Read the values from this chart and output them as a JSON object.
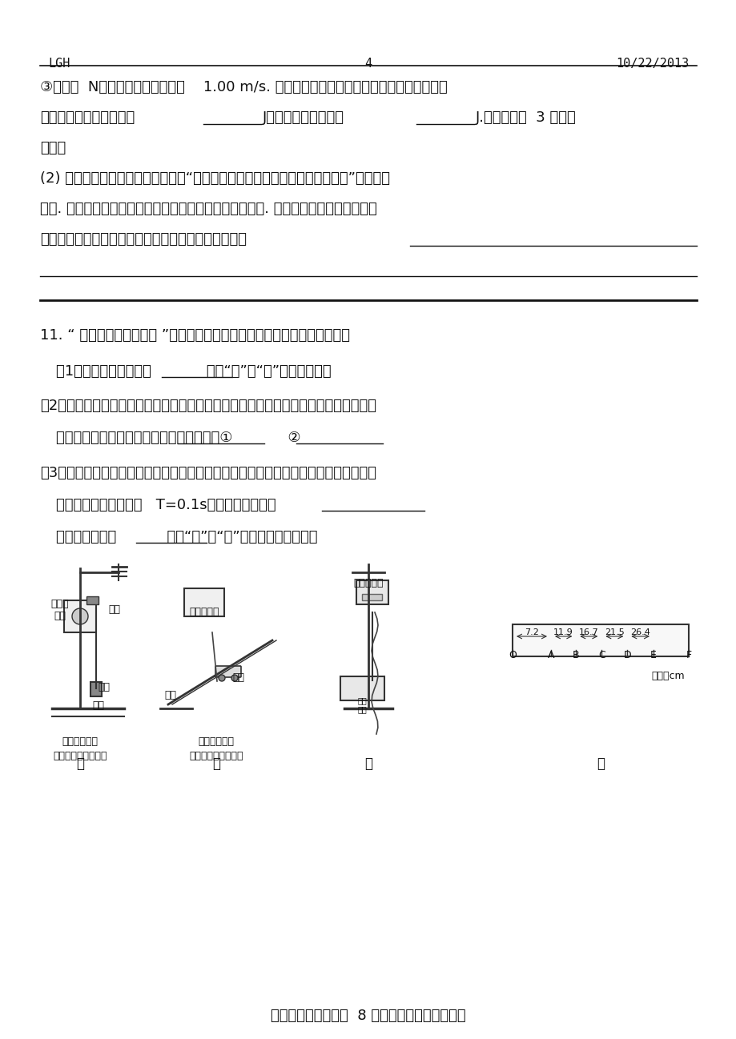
{
  "bg_color": "#ffffff",
  "header_left": "LGH",
  "header_center": "4",
  "header_right": "10/22/2013",
  "line1": "③打下第  N点时小车的速度大小为    1.00 m/s. 该同学将钉码的重力当作小车所受的拉力，算",
  "line2": "出：拉力对小车做的功为           J，小车动能的增量为           J.（结果保留  3 位有效",
  "line3": "数字）",
  "line4": "(2) 此次实验探究结果，他没能得到“恒力对物体做的功，等于物体动能的增量”，且误差",
  "line5": "很大. 显然，在实验探究过程中忽视了各种产生误差的因素. 请你根据该同学的实验装置",
  "line6": "和操作过程帮助分析一下，造成较大误差的可能原因是",
  "line7_blank": true,
  "separator_line": true,
  "q11_line": "11. “ 验证机械能守恒定律 ”的实验装置可采用如图示的甲或乙方案来进行。",
  "q11_1": "（1）比较这两种方案，            （填“甲”或“乙”）方案好些。",
  "q11_2": "（2）该同学开始实验时，情形如图丙所示，接通电源释放纸带，请指出该同学在实验操",
  "q11_2b": "作中存在的两处明显错误或者不当的地方：①            ②",
  "q11_3": "（3）该实验中得到一条纸带，且测得两个计数点闪的距离如图丁中所示。已知相邻两个",
  "q11_3b": "计数点之间的时间间隔   T=0.1s，物块加速度为：",
  "q11_3c": "则该纸带是采用           （填“甲”或“乙”）实验方案得到的。",
  "footer": "高三物理第一学期第  8 周晚练测试（实验专题）"
}
